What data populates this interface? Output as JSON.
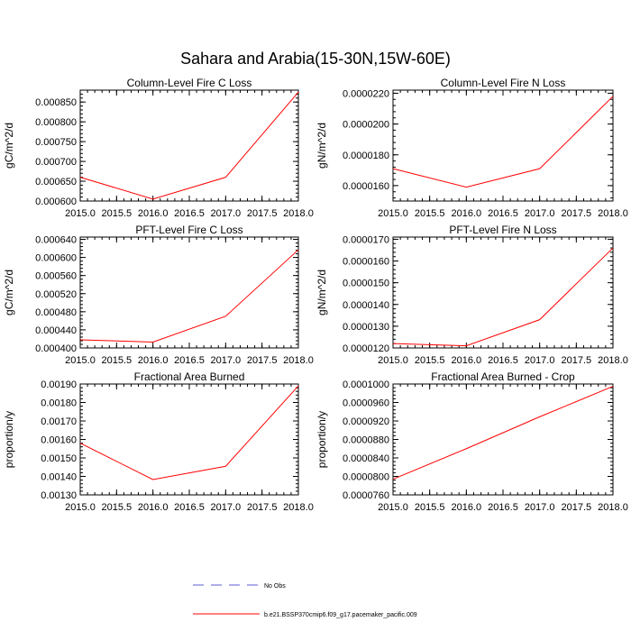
{
  "page_title": "Sahara and Arabia(15-30N,15W-60E)",
  "colors": {
    "model_line": "#ff0000",
    "obs_line": "#5b5bd6",
    "axis": "#000000"
  },
  "legend": {
    "items": [
      {
        "label": "No Obs",
        "style": "dashed",
        "color": "#5b5bd6"
      },
      {
        "label": "b.e21.BSSP370cmip6.f09_g17.pacemaker_pacific.009",
        "style": "solid",
        "color": "#ff0000"
      }
    ]
  },
  "chart_data": [
    {
      "type": "line",
      "title": "Column-Level Fire C Loss",
      "ylabel": "gC/m^2/d",
      "x": [
        2015.0,
        2016.0,
        2017.0,
        2018.0
      ],
      "series": [
        {
          "values": [
            0.00066,
            0.000605,
            0.00066,
            0.000875
          ]
        }
      ],
      "xlim": [
        2015.0,
        2018.0
      ],
      "ylim": [
        0.0006,
        0.00088
      ],
      "xticks": [
        "2015.0",
        "2015.5",
        "2016.0",
        "2016.5",
        "2017.0",
        "2017.5",
        "2018.0"
      ],
      "yticks": [
        {
          "v": 0.0006,
          "label": "0.000600"
        },
        {
          "v": 0.00065,
          "label": "0.000650"
        },
        {
          "v": 0.0007,
          "label": "0.000700"
        },
        {
          "v": 0.00075,
          "label": "0.000750"
        },
        {
          "v": 0.0008,
          "label": "0.000800"
        },
        {
          "v": 0.00085,
          "label": "0.000850"
        }
      ]
    },
    {
      "type": "line",
      "title": "Column-Level Fire N Loss",
      "ylabel": "gN/m^2/d",
      "x": [
        2015.0,
        2016.0,
        2017.0,
        2018.0
      ],
      "series": [
        {
          "values": [
            1.71e-05,
            1.59e-05,
            1.71e-05,
            2.18e-05
          ]
        }
      ],
      "xlim": [
        2015.0,
        2018.0
      ],
      "ylim": [
        1.5e-05,
        2.22e-05
      ],
      "xticks": [
        "2015.0",
        "2015.5",
        "2016.0",
        "2016.5",
        "2017.0",
        "2017.5",
        "2018.0"
      ],
      "yticks": [
        {
          "v": 1.6e-05,
          "label": "0.0000160"
        },
        {
          "v": 1.8e-05,
          "label": "0.0000180"
        },
        {
          "v": 2e-05,
          "label": "0.0000200"
        },
        {
          "v": 2.2e-05,
          "label": "0.0000220"
        }
      ]
    },
    {
      "type": "line",
      "title": "PFT-Level Fire C Loss",
      "ylabel": "gC/m^2/d",
      "x": [
        2015.0,
        2016.0,
        2017.0,
        2018.0
      ],
      "series": [
        {
          "values": [
            0.000418,
            0.000413,
            0.00047,
            0.000617
          ]
        }
      ],
      "xlim": [
        2015.0,
        2018.0
      ],
      "ylim": [
        0.0004,
        0.000645
      ],
      "xticks": [
        "2015.0",
        "2015.5",
        "2016.0",
        "2016.5",
        "2017.0",
        "2017.5",
        "2018.0"
      ],
      "yticks": [
        {
          "v": 0.0004,
          "label": "0.000400"
        },
        {
          "v": 0.00044,
          "label": "0.000440"
        },
        {
          "v": 0.00048,
          "label": "0.000480"
        },
        {
          "v": 0.00052,
          "label": "0.000520"
        },
        {
          "v": 0.00056,
          "label": "0.000560"
        },
        {
          "v": 0.0006,
          "label": "0.000600"
        },
        {
          "v": 0.00064,
          "label": "0.000640"
        }
      ]
    },
    {
      "type": "line",
      "title": "PFT-Level Fire N Loss",
      "ylabel": "gN/m^2/d",
      "x": [
        2015.0,
        2016.0,
        2017.0,
        2018.0
      ],
      "series": [
        {
          "values": [
            1.22e-05,
            1.21e-05,
            1.33e-05,
            1.66e-05
          ]
        }
      ],
      "xlim": [
        2015.0,
        2018.0
      ],
      "ylim": [
        1.2e-05,
        1.71e-05
      ],
      "xticks": [
        "2015.0",
        "2015.5",
        "2016.0",
        "2016.5",
        "2017.0",
        "2017.5",
        "2018.0"
      ],
      "yticks": [
        {
          "v": 1.2e-05,
          "label": "0.0000120"
        },
        {
          "v": 1.3e-05,
          "label": "0.0000130"
        },
        {
          "v": 1.4e-05,
          "label": "0.0000140"
        },
        {
          "v": 1.5e-05,
          "label": "0.0000150"
        },
        {
          "v": 1.6e-05,
          "label": "0.0000160"
        },
        {
          "v": 1.7e-05,
          "label": "0.0000170"
        }
      ]
    },
    {
      "type": "line",
      "title": "Fractional Area Burned",
      "ylabel": "proportion/y",
      "x": [
        2015.0,
        2016.0,
        2017.0,
        2018.0
      ],
      "series": [
        {
          "values": [
            0.00158,
            0.001383,
            0.001455,
            0.00189
          ]
        }
      ],
      "xlim": [
        2015.0,
        2018.0
      ],
      "ylim": [
        0.0013,
        0.0019
      ],
      "xticks": [
        "2015.0",
        "2015.5",
        "2016.0",
        "2016.5",
        "2017.0",
        "2017.5",
        "2018.0"
      ],
      "yticks": [
        {
          "v": 0.0013,
          "label": "0.00130"
        },
        {
          "v": 0.0014,
          "label": "0.00140"
        },
        {
          "v": 0.0015,
          "label": "0.00150"
        },
        {
          "v": 0.0016,
          "label": "0.00160"
        },
        {
          "v": 0.0017,
          "label": "0.00170"
        },
        {
          "v": 0.0018,
          "label": "0.00180"
        },
        {
          "v": 0.0019,
          "label": "0.00190"
        }
      ]
    },
    {
      "type": "line",
      "title": "Fractional Area Burned - Crop",
      "ylabel": "proportion/y",
      "x": [
        2015.0,
        2016.0,
        2017.0,
        2018.0
      ],
      "series": [
        {
          "values": [
            7.94e-05,
            8.6e-05,
            9.29e-05,
            9.95e-05
          ]
        }
      ],
      "xlim": [
        2015.0,
        2018.0
      ],
      "ylim": [
        7.6e-05,
        0.0001
      ],
      "xticks": [
        "2015.0",
        "2015.5",
        "2016.0",
        "2016.5",
        "2017.0",
        "2017.5",
        "2018.0"
      ],
      "yticks": [
        {
          "v": 7.6e-05,
          "label": "0.0000760"
        },
        {
          "v": 8e-05,
          "label": "0.0000800"
        },
        {
          "v": 8.4e-05,
          "label": "0.0000840"
        },
        {
          "v": 8.8e-05,
          "label": "0.0000880"
        },
        {
          "v": 9.2e-05,
          "label": "0.0000920"
        },
        {
          "v": 9.6e-05,
          "label": "0.0000960"
        },
        {
          "v": 0.0001,
          "label": "0.0001000"
        }
      ]
    }
  ]
}
